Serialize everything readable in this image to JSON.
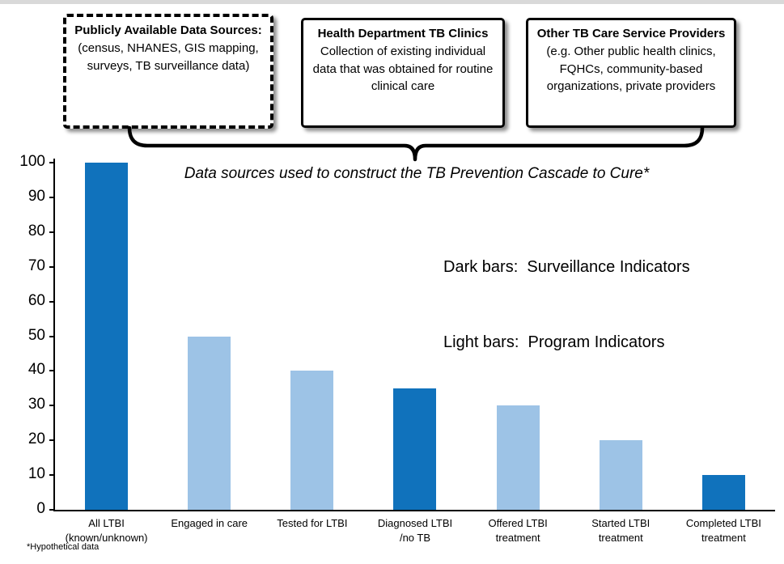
{
  "boxes": [
    {
      "title": "Publicly Available Data Sources:",
      "body": "(census, NHANES, GIS mapping, surveys, TB surveillance data)"
    },
    {
      "title": "Health Department TB Clinics",
      "body": "Collection of existing individual data that was obtained for routine clinical care"
    },
    {
      "title": "Other TB Care Service Providers",
      "body": "(e.g. Other public health clinics, FQHCs, community-based organizations, private providers"
    }
  ],
  "chart_data": {
    "type": "bar",
    "title": "Data sources used to construct the TB Prevention Cascade to Cure*",
    "categories": [
      "All LTBI\n(known/unknown)",
      "Engaged in care",
      "Tested for LTBI",
      "Diagnosed LTBI\n/no TB",
      "Offered LTBI\ntreatment",
      "Started LTBI\ntreatment",
      "Completed LTBI\ntreatment"
    ],
    "series": [
      {
        "name": "TB Prevention Cascade to Cure",
        "values": [
          100,
          50,
          40,
          35,
          30,
          20,
          10
        ]
      }
    ],
    "bar_styles": [
      "dark",
      "light",
      "light",
      "dark",
      "light",
      "light",
      "dark"
    ],
    "colors": {
      "dark_bar": "#1072BC",
      "light_bar": "#9DC3E6"
    },
    "xlabel": "",
    "ylabel": "",
    "ylim": [
      0,
      100
    ],
    "yticks": [
      0,
      10,
      20,
      30,
      40,
      50,
      60,
      70,
      80,
      90,
      100
    ],
    "grid": false,
    "legend_position": "upper-right-inside",
    "legend_note": {
      "dark": "Dark bars:  Surveillance Indicators",
      "light": "Light bars:  Program Indicators"
    },
    "footnote": "*Hypothetical data"
  }
}
